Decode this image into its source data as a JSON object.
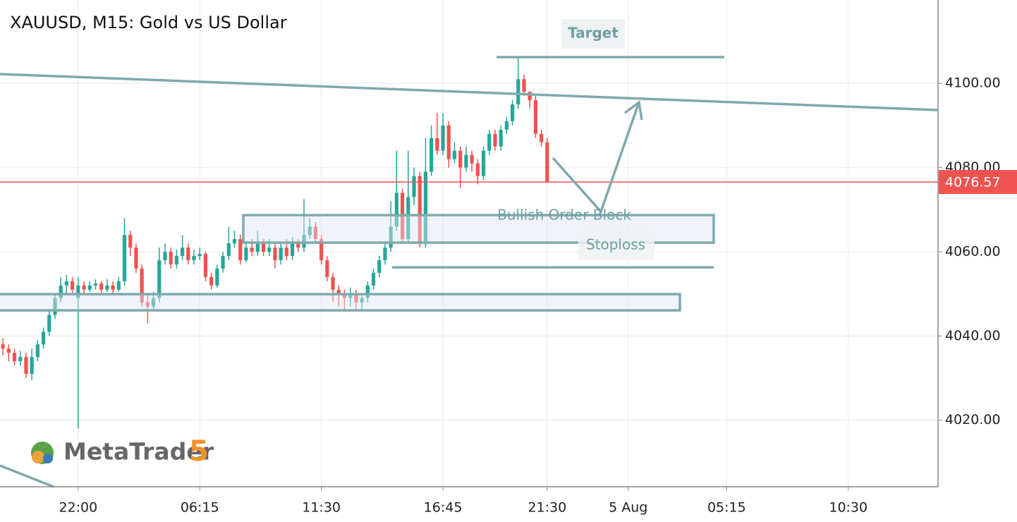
{
  "chart_data": {
    "type": "candlestick",
    "title": "XAUUSD, M15: Gold vs US Dollar",
    "categories": [
      null,
      null,
      null,
      null,
      null,
      null,
      null,
      null,
      null,
      null,
      null,
      null,
      null,
      "22:00",
      null,
      null,
      null,
      null,
      null,
      null,
      null,
      null,
      null,
      null,
      null,
      null,
      null,
      null,
      null,
      null,
      null,
      null,
      null,
      null,
      "06:15",
      null,
      null,
      null,
      null,
      null,
      null,
      null,
      null,
      null,
      null,
      null,
      null,
      null,
      null,
      null,
      null,
      null,
      null,
      null,
      null,
      "11:30",
      null,
      null,
      null,
      null,
      null,
      null,
      null,
      null,
      null,
      null,
      null,
      null,
      null,
      null,
      null,
      null,
      null,
      null,
      null,
      null,
      "16:45",
      null,
      null,
      null,
      null,
      null,
      null,
      null,
      null,
      null,
      null,
      null,
      null,
      null,
      null,
      null,
      null,
      null,
      "21:30",
      null,
      null,
      null,
      null,
      null,
      null,
      null,
      null,
      null,
      null,
      null,
      null,
      null,
      "5 Aug",
      null,
      null,
      null,
      null,
      null,
      null,
      null,
      null,
      null,
      null,
      null,
      null,
      null,
      null,
      null,
      null,
      "05:15",
      null,
      null,
      null,
      null,
      null,
      null,
      null,
      null,
      null,
      null,
      null,
      null,
      null,
      null,
      null,
      null,
      null,
      null,
      null,
      null,
      "10:30",
      null,
      null,
      null,
      null,
      null,
      null,
      null,
      null,
      null,
      null,
      null,
      null,
      null,
      null,
      null
    ],
    "open": [
      4038,
      4037,
      4036,
      4034,
      4035,
      4031,
      4035,
      4038,
      4041,
      4045,
      4049,
      4052,
      4053,
      4049,
      4052,
      4051,
      4052,
      4052.5,
      4051,
      4052,
      4051,
      4053,
      4064,
      4061,
      4056,
      4048,
      4047,
      4049,
      4058,
      4060,
      4057,
      4059,
      4061,
      4058,
      4059,
      4059.5,
      4054,
      4052,
      4056,
      4059,
      4062,
      4063,
      4058,
      4061,
      4060,
      4062,
      4060,
      4061,
      4058,
      4061,
      4059,
      4062,
      4061,
      4064,
      4066,
      4063,
      4058,
      4054,
      4051,
      4050,
      4049,
      4050,
      4048,
      4049,
      4052,
      4055,
      4058,
      4061,
      4066,
      4074,
      4063,
      4073,
      4078,
      4062,
      4079,
      4087,
      4084,
      4090,
      4082,
      4084,
      4080,
      4083,
      4081,
      4078,
      4084,
      4088,
      4085,
      4089,
      4091,
      4095,
      4101,
      4098,
      4096,
      4088,
      4086,
      null,
      null,
      null,
      null,
      null,
      null,
      null,
      null,
      null,
      null,
      null,
      null,
      null,
      null,
      null,
      null,
      null,
      null,
      null,
      null,
      null,
      null,
      null,
      null,
      null,
      null,
      null,
      null,
      null,
      null,
      null,
      null,
      null,
      null,
      null,
      null,
      null,
      null,
      null,
      null,
      null,
      null,
      null,
      null,
      null,
      null,
      null,
      null,
      null,
      null,
      null,
      null,
      null,
      null,
      null,
      null,
      null,
      null,
      null,
      null,
      null,
      null,
      null,
      null,
      null,
      null,
      null
    ],
    "high": [
      4039.5,
      4038,
      4037,
      4036.5,
      4036,
      4037,
      4039,
      4042,
      4046.5,
      4050,
      4054,
      4054.5,
      4054,
      4054,
      4053,
      4053,
      4053.5,
      4053,
      4053.5,
      4053,
      4054,
      4068,
      4065,
      4062,
      4057,
      4050,
      4050.5,
      4061,
      4062,
      4061,
      4060.5,
      4064,
      4062,
      4060.5,
      4061,
      4060,
      4055,
      4057,
      4060,
      4066,
      4065,
      4064,
      4062.5,
      4063,
      4065,
      4063,
      4063,
      4062,
      4062,
      4063,
      4063.5,
      4063,
      4072.5,
      4068,
      4067,
      4064,
      4059,
      4055,
      4052,
      4051,
      4051.5,
      4051,
      4050,
      4053,
      4056,
      4059,
      4062,
      4072,
      4084,
      4075,
      4084,
      4080,
      4079,
      4087,
      4090,
      4093,
      4093,
      4091,
      4086,
      4085,
      4085,
      4084,
      4082,
      4085,
      4089,
      4089,
      4090,
      4092,
      4096,
      4106,
      4102,
      4097.5,
      4097,
      4089,
      4087,
      null,
      null,
      null,
      null,
      null,
      null,
      null,
      null,
      null,
      null,
      null,
      null,
      null,
      null,
      null,
      null,
      null,
      null,
      null,
      null,
      null,
      null,
      null,
      null,
      null,
      null,
      null,
      null,
      null,
      null,
      null,
      null,
      null,
      null,
      null,
      null,
      null,
      null,
      null,
      null,
      null,
      null,
      null,
      null,
      null,
      null,
      null,
      null,
      null,
      null,
      null,
      null,
      null,
      null,
      null,
      null,
      null,
      null,
      null,
      null,
      null,
      null,
      null,
      null,
      null,
      null,
      null
    ],
    "low": [
      4035.5,
      4034,
      4033,
      4033,
      4030,
      4029.5,
      4034,
      4037,
      4040,
      4044,
      4048,
      4050,
      4050,
      4018,
      4050,
      4050.5,
      4051,
      4050,
      4050.5,
      4050,
      4050.5,
      4052,
      4059,
      4055,
      4047,
      4043,
      4046,
      4048,
      4057,
      4056,
      4056,
      4058,
      4057,
      4057,
      4058,
      4053,
      4051,
      4051.5,
      4055,
      4058,
      4061,
      4057,
      4057.5,
      4059,
      4059,
      4059,
      4059,
      4056,
      4057,
      4058,
      4058,
      4060,
      4060,
      4063,
      4062,
      4057,
      4053,
      4048,
      4047,
      4046,
      4047,
      4046,
      4046,
      4048,
      4051,
      4054,
      4057,
      4060,
      4065,
      4062,
      4062,
      4071,
      4061,
      4061,
      4078,
      4083,
      4083,
      4080,
      4081,
      4075,
      4079,
      4079,
      4076,
      4077,
      4083,
      4084,
      4084,
      4088,
      4090,
      4094,
      4097,
      4094,
      4087,
      4085,
      4076.5,
      null,
      null,
      null,
      null,
      null,
      null,
      null,
      null,
      null,
      null,
      null,
      null,
      null,
      null,
      null,
      null,
      null,
      null,
      null,
      null,
      null,
      null,
      null,
      null,
      null,
      null,
      null,
      null,
      null,
      null,
      null,
      null,
      null,
      null,
      null,
      null,
      null,
      null,
      null,
      null,
      null,
      null,
      null,
      null,
      null,
      null,
      null,
      null,
      null,
      null,
      null,
      null,
      null,
      null,
      null,
      null,
      null,
      null,
      null,
      null,
      null,
      null,
      null,
      null,
      null,
      null,
      null
    ],
    "close": [
      4037,
      4036,
      4034,
      4035,
      4031,
      4035,
      4038,
      4041,
      4045,
      4049,
      4052,
      4053,
      4051,
      4052,
      4051,
      4052,
      4052.5,
      4051,
      4052,
      4051,
      4053,
      4064,
      4061,
      4056,
      4048,
      4047,
      4049,
      4058,
      4060,
      4057,
      4059,
      4061,
      4058,
      4059,
      4059.5,
      4054,
      4052,
      4056,
      4059,
      4062,
      4063,
      4058,
      4061,
      4060,
      4062,
      4060,
      4061,
      4058,
      4061,
      4059,
      4062,
      4061,
      4064,
      4066,
      4063,
      4058,
      4054,
      4051,
      4050,
      4049,
      4050,
      4048,
      4049,
      4052,
      4055,
      4058,
      4061,
      4066,
      4074,
      4063,
      4073,
      4078,
      4062,
      4079,
      4087,
      4084,
      4090,
      4082,
      4084,
      4080,
      4083,
      4081,
      4078,
      4084,
      4088,
      4085,
      4089,
      4091,
      4095,
      4101,
      4098,
      4096,
      4088,
      4086,
      4076.57,
      null,
      null,
      null,
      null,
      null,
      null,
      null,
      null,
      null,
      null,
      null,
      null,
      null,
      null,
      null,
      null,
      null,
      null,
      null,
      null,
      null,
      null,
      null,
      null,
      null,
      null,
      null,
      null,
      null,
      null,
      null,
      null,
      null,
      null,
      null,
      null,
      null,
      null,
      null,
      null,
      null,
      null,
      null,
      null,
      null,
      null,
      null,
      null,
      null,
      null,
      null,
      null,
      null,
      null,
      null,
      null,
      null,
      null,
      null,
      null,
      null,
      null,
      null,
      null,
      null,
      null,
      null
    ],
    "up_color": "#26a69a",
    "down_color": "#ef5350",
    "last_price": 4076.57,
    "last_price_color": "#ef5350",
    "ylim": [
      4004.2,
      4119.8
    ],
    "yticks": [
      {
        "value": 4020,
        "label": "4020.00"
      },
      {
        "value": 4040,
        "label": "4040.00"
      },
      {
        "value": 4060,
        "label": "4060.00"
      },
      {
        "value": 4080,
        "label": "4080.00"
      },
      {
        "value": 4100,
        "label": "4100.00"
      }
    ],
    "grid": true,
    "annotations": [
      "Target",
      "Bullish Order Block",
      "Stoploss"
    ],
    "branding": {
      "name": "MetaTrader",
      "version": "5"
    }
  }
}
